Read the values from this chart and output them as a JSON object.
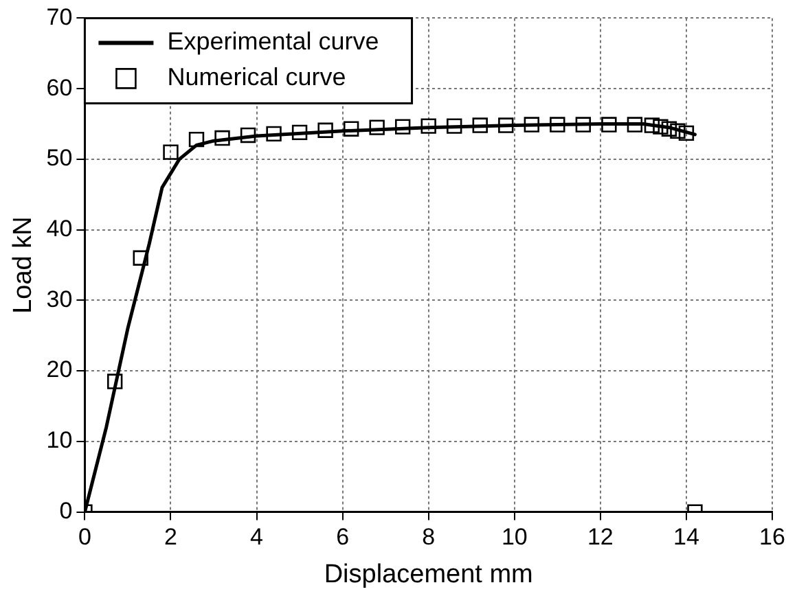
{
  "chart_data": {
    "type": "line",
    "xlabel": "Displacement mm",
    "ylabel": "Load kN",
    "xlim": [
      0,
      16
    ],
    "xticks": [
      0,
      2,
      4,
      6,
      8,
      10,
      12,
      14,
      16
    ],
    "ylim": [
      0,
      70
    ],
    "yticks": [
      0,
      10,
      20,
      30,
      40,
      50,
      60,
      70
    ],
    "grid": true,
    "legend": "top left",
    "series": [
      {
        "name": "Experimental curve",
        "color": "#000000",
        "marker": "none",
        "line_style": "solid",
        "x": [
          0,
          0.5,
          1,
          1.5,
          1.8,
          2.2,
          2.6,
          3,
          4,
          6,
          8,
          10,
          12,
          13,
          13.6,
          14.2
        ],
        "values": [
          0,
          12,
          26,
          38,
          46,
          50,
          52,
          52.6,
          53.3,
          54,
          54.5,
          54.8,
          55,
          55,
          54.5,
          53.5
        ]
      },
      {
        "name": "Numerical curve",
        "type": "scatter",
        "color": "#000000",
        "marker": "square",
        "x": [
          0,
          0.7,
          1.3,
          2,
          2.6,
          3.2,
          3.8,
          4.4,
          5,
          5.6,
          6.2,
          6.8,
          7.4,
          8,
          8.6,
          9.2,
          9.8,
          10.4,
          11,
          11.6,
          12.2,
          12.8,
          13.2,
          13.4,
          13.6,
          13.8,
          14,
          14.2
        ],
        "values": [
          0,
          18.5,
          36,
          51,
          52.8,
          53,
          53.4,
          53.6,
          53.8,
          54.1,
          54.3,
          54.5,
          54.6,
          54.7,
          54.7,
          54.8,
          54.8,
          54.9,
          54.9,
          54.9,
          54.9,
          54.9,
          54.8,
          54.6,
          54.3,
          54,
          53.7,
          0
        ]
      }
    ]
  }
}
